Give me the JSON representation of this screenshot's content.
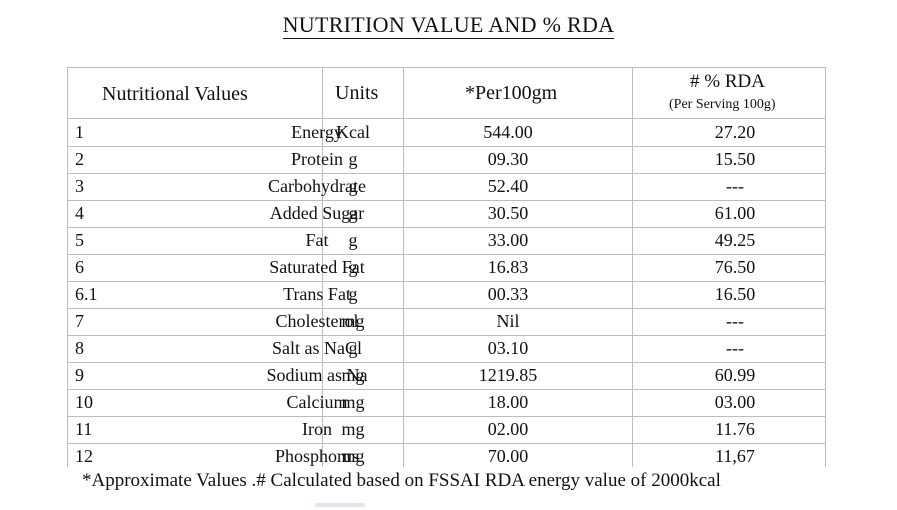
{
  "title": "NUTRITION VALUE AND % RDA",
  "headers": {
    "nutritional_values": "Nutritional Values",
    "units": "Units",
    "per100": "*Per100gm",
    "rda_line1": "# % RDA",
    "rda_line2": "(Per Serving 100g)"
  },
  "rows": [
    {
      "num": "1",
      "name": "Energy",
      "unit": "Kcal",
      "per100": "544.00",
      "rda": "27.20"
    },
    {
      "num": "2",
      "name": "Protein",
      "unit": "g",
      "per100": "09.30",
      "rda": "15.50"
    },
    {
      "num": "3",
      "name": "Carbohydrate",
      "unit": "g",
      "per100": "52.40",
      "rda": "---"
    },
    {
      "num": "4",
      "name": "Added Sugar",
      "unit": "g",
      "per100": "30.50",
      "rda": "61.00"
    },
    {
      "num": "5",
      "name": "Fat",
      "unit": "g",
      "per100": "33.00",
      "rda": "49.25"
    },
    {
      "num": "6",
      "name": "Saturated Fat",
      "unit": "g",
      "per100": "16.83",
      "rda": "76.50"
    },
    {
      "num": "6.1",
      "name": "Trans Fat",
      "unit": "g",
      "per100": "00.33",
      "rda": "16.50"
    },
    {
      "num": "7",
      "name": "Cholesterol",
      "unit": "mg",
      "per100": "Nil",
      "rda": "---"
    },
    {
      "num": "8",
      "name": "Salt as NaCl",
      "unit": "g",
      "per100": "03.10",
      "rda": "---"
    },
    {
      "num": "9",
      "name": "Sodium as Na",
      "unit": "mg",
      "per100": "1219.85",
      "rda": "60.99"
    },
    {
      "num": "10",
      "name": "Calcium",
      "unit": "mg",
      "per100": "18.00",
      "rda": "03.00"
    },
    {
      "num": "11",
      "name": "Iron",
      "unit": "mg",
      "per100": "02.00",
      "rda": "11.76"
    },
    {
      "num": "12",
      "name": "Phosphorus",
      "unit": "mg",
      "per100": "70.00",
      "rda": "11,67"
    }
  ],
  "footnote": "*Approximate Values .# Calculated based on FSSAI RDA energy value of 2000kcal"
}
